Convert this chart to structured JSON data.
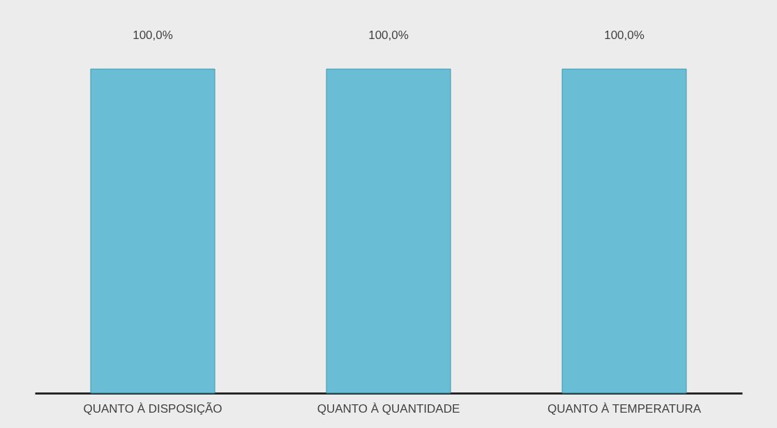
{
  "chart_data": {
    "type": "bar",
    "categories": [
      "QUANTO À DISPOSIÇÃO",
      "QUANTO À QUANTIDADE",
      "QUANTO À TEMPERATURA"
    ],
    "values": [
      100,
      100,
      100
    ],
    "value_labels": [
      "100,0%",
      "100,0%",
      "100,0%"
    ],
    "color": "#5bbad3"
  }
}
